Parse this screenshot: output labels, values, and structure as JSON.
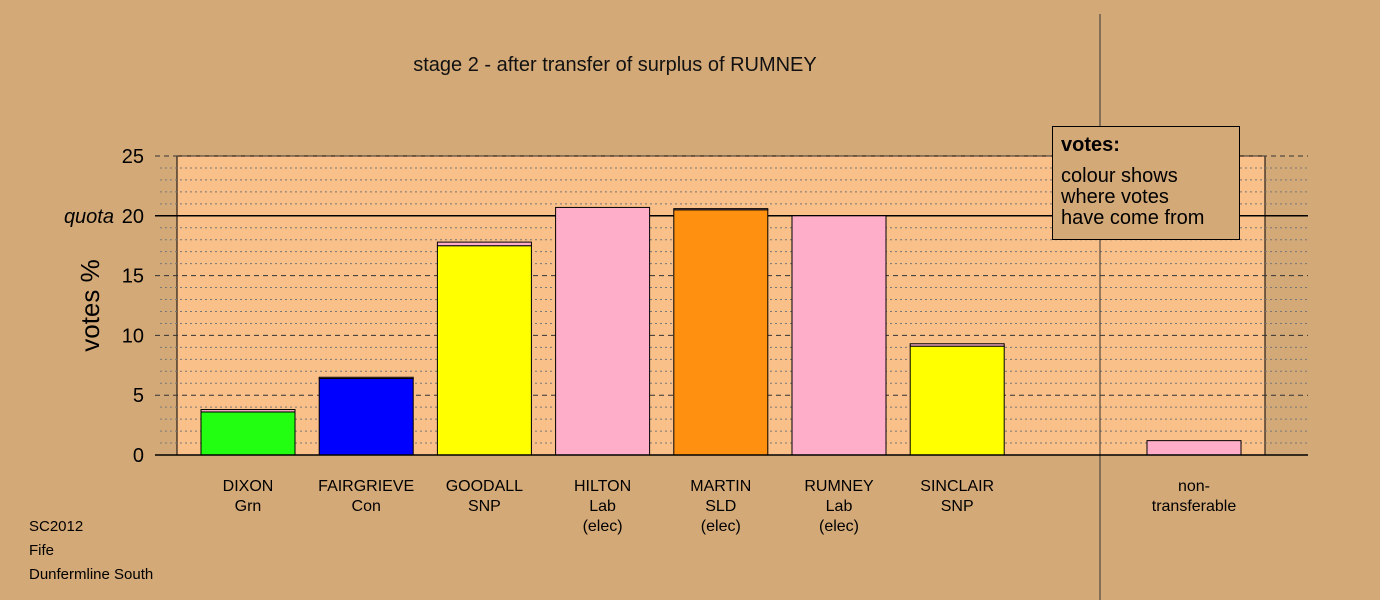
{
  "title": "stage 2 - after transfer of surplus of RUMNEY",
  "footer": [
    "SC2012",
    "Fife",
    "Dunfermline South"
  ],
  "legend": {
    "heading": "votes:",
    "lines": [
      "colour shows",
      "where votes",
      "have come from"
    ]
  },
  "chart_data": {
    "type": "bar",
    "stacked": true,
    "title": "stage 2 - after transfer of surplus of RUMNEY",
    "ylabel": "votes %",
    "ylim": [
      0,
      25
    ],
    "yticks": [
      0,
      5,
      10,
      15,
      20,
      25
    ],
    "quota": {
      "label": "quota",
      "value": 20
    },
    "grid": true,
    "legend_position": "top-right",
    "candidates": [
      {
        "name": "DIXON",
        "party": "Grn",
        "status": "",
        "segments": [
          {
            "value": 3.6,
            "color": "#22ff11"
          },
          {
            "value": 0.2,
            "color": "#ffaec9"
          }
        ]
      },
      {
        "name": "FAIRGRIEVE",
        "party": "Con",
        "status": "",
        "segments": [
          {
            "value": 6.4,
            "color": "#0000ff"
          },
          {
            "value": 0.1,
            "color": "#ffaec9"
          }
        ]
      },
      {
        "name": "GOODALL",
        "party": "SNP",
        "status": "",
        "segments": [
          {
            "value": 17.5,
            "color": "#ffff00"
          },
          {
            "value": 0.3,
            "color": "#ffaec9"
          }
        ]
      },
      {
        "name": "HILTON",
        "party": "Lab",
        "status": "(elec)",
        "segments": [
          {
            "value": 20.7,
            "color": "#ffaec9"
          }
        ]
      },
      {
        "name": "MARTIN",
        "party": "SLD",
        "status": "(elec)",
        "segments": [
          {
            "value": 20.5,
            "color": "#ff9010"
          },
          {
            "value": 0.1,
            "color": "#ffaec9"
          }
        ]
      },
      {
        "name": "RUMNEY",
        "party": "Lab",
        "status": "(elec)",
        "segments": [
          {
            "value": 20.0,
            "color": "#ffaec9"
          }
        ]
      },
      {
        "name": "SINCLAIR",
        "party": "SNP",
        "status": "",
        "segments": [
          {
            "value": 9.1,
            "color": "#ffff00"
          },
          {
            "value": 0.2,
            "color": "#ffaec9"
          }
        ]
      }
    ],
    "nontransferable": {
      "label_lines": [
        "non-",
        "transferable"
      ],
      "value": 1.2,
      "color": "#ffaec9"
    }
  }
}
